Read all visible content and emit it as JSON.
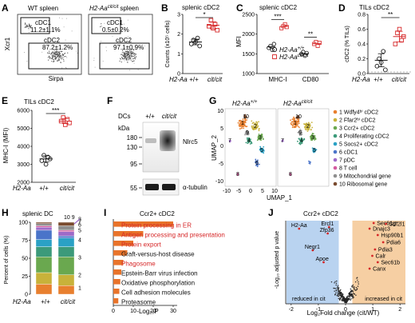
{
  "colors": {
    "red": "#d62728",
    "orange": "#e8732a",
    "blue_bg": "#b9d3f0",
    "orange_bg": "#f6cfa3",
    "umap": [
      "#e87f2e",
      "#c8b23a",
      "#6aa84f",
      "#3c9a7a",
      "#2aa1c5",
      "#4a74c9",
      "#9e6ac8",
      "#d45aa0",
      "#8f8f8f",
      "#7a4b2f"
    ]
  },
  "panelA": {
    "label": "A",
    "wt_title": "WT spleen",
    "cit_title": "H2-Aa cit/cit spleen",
    "cit_title_base": "H2-Aa",
    "cit_title_sup": "cit/cit",
    "cit_title_suffix": "spleen",
    "ylabel": "Xcr1",
    "xlabel": "Sirpa",
    "wt_cdc1": "cDC1",
    "wt_cdc1_val": "11.2±1.1%",
    "wt_cdc2": "cDC2",
    "wt_cdc2_val": "87.2±1.2%",
    "cit_cdc1": "cDC1",
    "cit_cdc1_val": "0.5±0.2%",
    "cit_cdc2": "cDC2",
    "cit_cdc2_val": "97.1±0.9%"
  },
  "panelB": {
    "label": "B",
    "title": "splenic cDC2",
    "ylabel": "Counts (x10⁵ cells)",
    "sig": "*",
    "genotype_label": "H2-Aa",
    "groups": [
      "+/+",
      "cit/cit"
    ],
    "chart_data": {
      "type": "scatter",
      "categories": [
        "+/+",
        "cit/cit"
      ],
      "series": [
        {
          "group": "+/+",
          "values": [
            1.5,
            1.7,
            1.6,
            1.8,
            1.4
          ],
          "mean": 1.6
        },
        {
          "group": "cit/cit",
          "values": [
            2.4,
            2.7,
            2.3,
            2.5,
            2.2
          ],
          "mean": 2.45
        }
      ],
      "ylim": [
        0,
        3
      ],
      "yticks": [
        0,
        1,
        2,
        3
      ]
    }
  },
  "panelC": {
    "label": "C",
    "title": "splenic cDC2",
    "ylabel": "MFI",
    "sig1": "***",
    "sig2": "**",
    "legend_wt": "H2-Aa +/+",
    "legend_wt_base": "H2-Aa",
    "legend_wt_sup": "+/+",
    "legend_cit_base": "H2-Aa",
    "legend_cit_sup": "cit/cit",
    "categories": [
      "MHC-I",
      "CD80"
    ],
    "chart_data": {
      "type": "scatter",
      "categories": [
        "MHC-I",
        "CD80"
      ],
      "series": [
        {
          "name": "H2-Aa +/+",
          "values": [
            [
              1650,
              1700,
              1600,
              1750
            ],
            [
              1500,
              1550,
              1450,
              1520
            ]
          ]
        },
        {
          "name": "H2-Aa cit/cit",
          "values": [
            [
              2150,
              2200,
              2250,
              2180
            ],
            [
              1750,
              1800,
              1700,
              1780
            ]
          ]
        }
      ],
      "ylim": [
        1000,
        2500
      ],
      "yticks": [
        1000,
        1500,
        2000,
        2500
      ]
    }
  },
  "panelD": {
    "label": "D",
    "title": "TILs cDC2",
    "ylabel": "cDC2 (% TILs)",
    "sig": "**",
    "genotype_label": "H2-Aa",
    "groups": [
      "+/+",
      "cit/cit"
    ],
    "chart_data": {
      "type": "scatter",
      "categories": [
        "+/+",
        "cit/cit"
      ],
      "series": [
        {
          "group": "+/+",
          "values": [
            0.1,
            0.2,
            0.15,
            0.3,
            0.05
          ],
          "mean": 0.18
        },
        {
          "group": "cit/cit",
          "values": [
            0.4,
            0.55,
            0.6,
            0.45,
            0.5
          ],
          "mean": 0.5
        }
      ],
      "ylim": [
        0,
        0.8
      ],
      "yticks": [
        0.0,
        0.2,
        0.4,
        0.6,
        0.8
      ]
    }
  },
  "panelE": {
    "label": "E",
    "title": "TILs cDC2",
    "ylabel": "MHC-I (MFI)",
    "sig": "***",
    "genotype_label": "H2-Aa",
    "groups": [
      "+/+",
      "cit/cit"
    ],
    "chart_data": {
      "type": "scatter",
      "categories": [
        "+/+",
        "cit/cit"
      ],
      "series": [
        {
          "group": "+/+",
          "values": [
            3200,
            3500,
            3000,
            3400,
            3300
          ],
          "mean": 3300
        },
        {
          "group": "cit/cit",
          "values": [
            5400,
            5600,
            5200,
            5500,
            5300
          ],
          "mean": 5400
        }
      ],
      "ylim": [
        2000,
        6000
      ],
      "yticks": [
        2000,
        3000,
        4000,
        5000,
        6000
      ]
    }
  },
  "panelF": {
    "label": "F",
    "dcs": "DCs",
    "lane1": "+/+",
    "lane2": "cit/cit",
    "kda": "kDa",
    "markers": [
      "180",
      "130",
      "95",
      "55"
    ],
    "band1": "Nlrc5",
    "band2": "α-tubulin"
  },
  "panelG": {
    "label": "G",
    "title_wt_base": "H2-Aa",
    "title_wt_sup": "+/+",
    "title_cit_base": "H2-Aa",
    "title_cit_sup": "cit/cit",
    "ylabel": "UMAP_2",
    "xlabel": "UMAP_1",
    "xticks": [
      "-10",
      "-5",
      "0",
      "5",
      "10"
    ],
    "yticks": [
      "10",
      "5",
      "0",
      "-5",
      "-10"
    ],
    "legend": [
      "1 Wdfy4ʰⁱ cDC2",
      "2 Ffar2ʰⁱ cDC2",
      "3 Ccr2+ cDC2",
      "4 Proliferating cDC2",
      "5 Socs2+ cDC2",
      "6 cDC1",
      "7 pDC",
      "8 T cell",
      "9 Mitochondrial gene",
      "10 Ribosomal gene"
    ]
  },
  "panelH": {
    "label": "H",
    "title": "splenic DC",
    "ylabel": "Percent of cells (%)",
    "genotype_label": "H2-Aa",
    "yticks": [
      "0",
      "25",
      "50",
      "75",
      "100"
    ],
    "chart_data": {
      "type": "bar",
      "categories": [
        "+/+",
        "cit/cit"
      ],
      "stacked": true,
      "series": [
        {
          "name": "1",
          "values": [
            14,
            12
          ]
        },
        {
          "name": "2",
          "values": [
            16,
            15
          ]
        },
        {
          "name": "3",
          "values": [
            22,
            25
          ]
        },
        {
          "name": "4",
          "values": [
            14,
            14
          ]
        },
        {
          "name": "5",
          "values": [
            10,
            12
          ]
        },
        {
          "name": "6",
          "values": [
            13,
            3
          ]
        },
        {
          "name": "7",
          "values": [
            4,
            6
          ]
        },
        {
          "name": "8",
          "values": [
            2,
            2
          ]
        },
        {
          "name": "9",
          "values": [
            3,
            6
          ]
        },
        {
          "name": "10",
          "values": [
            2,
            5
          ]
        }
      ],
      "ylim": [
        0,
        100
      ]
    },
    "stack_labels": [
      "1",
      "2",
      "3",
      "4",
      "5",
      "6",
      "7",
      "8",
      "10 9"
    ]
  },
  "panelI": {
    "label": "I",
    "title": "Ccr2+ cDC2",
    "xlabel": "-Log₁₀P",
    "xticks": [
      "0",
      "10",
      "20",
      "30"
    ],
    "chart_data": {
      "type": "bar",
      "orientation": "horizontal",
      "categories": [
        "Protein processing in ER",
        "Antigen processing and presentation",
        "Protein export",
        "Graft-versus-host disease",
        "Phagosome",
        "Epstein-Barr virus infection",
        "Oxidative phosphorylation",
        "Cell adhesion molecules",
        "Proteasome"
      ],
      "values": [
        30,
        15,
        10,
        7,
        5,
        4,
        3.5,
        3,
        2.5
      ],
      "highlight": [
        true,
        true,
        true,
        false,
        true,
        false,
        false,
        false,
        false
      ],
      "xlim": [
        0,
        32
      ]
    }
  },
  "panelJ": {
    "label": "J",
    "title": "Ccr2+ cDC2",
    "ylabel": "-Log₁₀ adjusted p value",
    "xlabel": "Log₂Fold change (cit/WT)",
    "xticks": [
      "-2",
      "-1",
      "0",
      "1",
      "2"
    ],
    "reduced": "reduced in cit",
    "increased": "increased in cit",
    "genes_left": [
      "H2-Aa",
      "Ercl1",
      "Zfp36",
      "Negr1",
      "Apoe"
    ],
    "genes_right": [
      "Sec61g",
      "Dnajc3",
      "Sdf2l1",
      "Hsp90b1",
      "Pdia6",
      "Pdia3",
      "Calr",
      "Sec61b",
      "Canx"
    ]
  }
}
